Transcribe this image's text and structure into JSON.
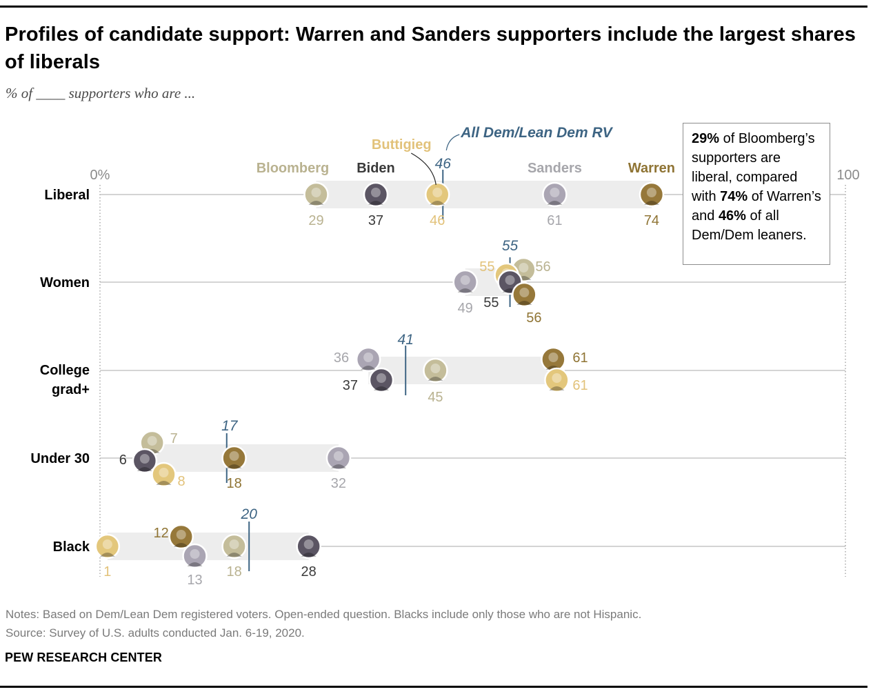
{
  "title": "Profiles of candidate support: Warren and Sanders supporters include the largest shares of liberals",
  "subtitle": "% of ____ supporters who are ...",
  "axis": {
    "min_label": "0%",
    "max_label": "100"
  },
  "dem_label": "All Dem/Lean Dem RV",
  "callout": {
    "t1": "29%",
    "t2": " of Bloomberg’s supporters are liberal, compared with ",
    "t3": "74%",
    "t4": " of Warren’s and ",
    "t5": "46%",
    "t6": " of all Dem/Dem leaners."
  },
  "notes": {
    "line1": "Notes: Based on Dem/Lean Dem registered voters. Open-ended question. Blacks include only those who are not Hispanic.",
    "line2": "Source: Survey of U.S. adults conducted Jan. 6-19, 2020."
  },
  "source_brand": "PEW RESEARCH CENTER",
  "colors": {
    "Bloomberg": "#c4bd9a",
    "Biden": "#5b5563",
    "Buttigieg": "#e3c77c",
    "Sanders": "#aaa5b3",
    "Warren": "#96783a",
    "dem": "#3d6483"
  },
  "chart_data": {
    "type": "dot",
    "xlim": [
      0,
      100
    ],
    "grid": false,
    "categories": [
      "Liberal",
      "Women",
      "College grad+",
      "Under 30",
      "Black"
    ],
    "series": [
      {
        "name": "Bloomberg",
        "values": [
          29,
          56,
          45,
          7,
          18
        ]
      },
      {
        "name": "Biden",
        "values": [
          37,
          55,
          37,
          6,
          28
        ]
      },
      {
        "name": "Buttigieg",
        "values": [
          46,
          55,
          61,
          8,
          1
        ]
      },
      {
        "name": "Sanders",
        "values": [
          61,
          49,
          36,
          32,
          13
        ]
      },
      {
        "name": "Warren",
        "values": [
          74,
          56,
          61,
          18,
          12
        ]
      }
    ],
    "reference": {
      "name": "All Dem/Lean Dem RV",
      "values": [
        46,
        55,
        41,
        17,
        20
      ]
    }
  }
}
